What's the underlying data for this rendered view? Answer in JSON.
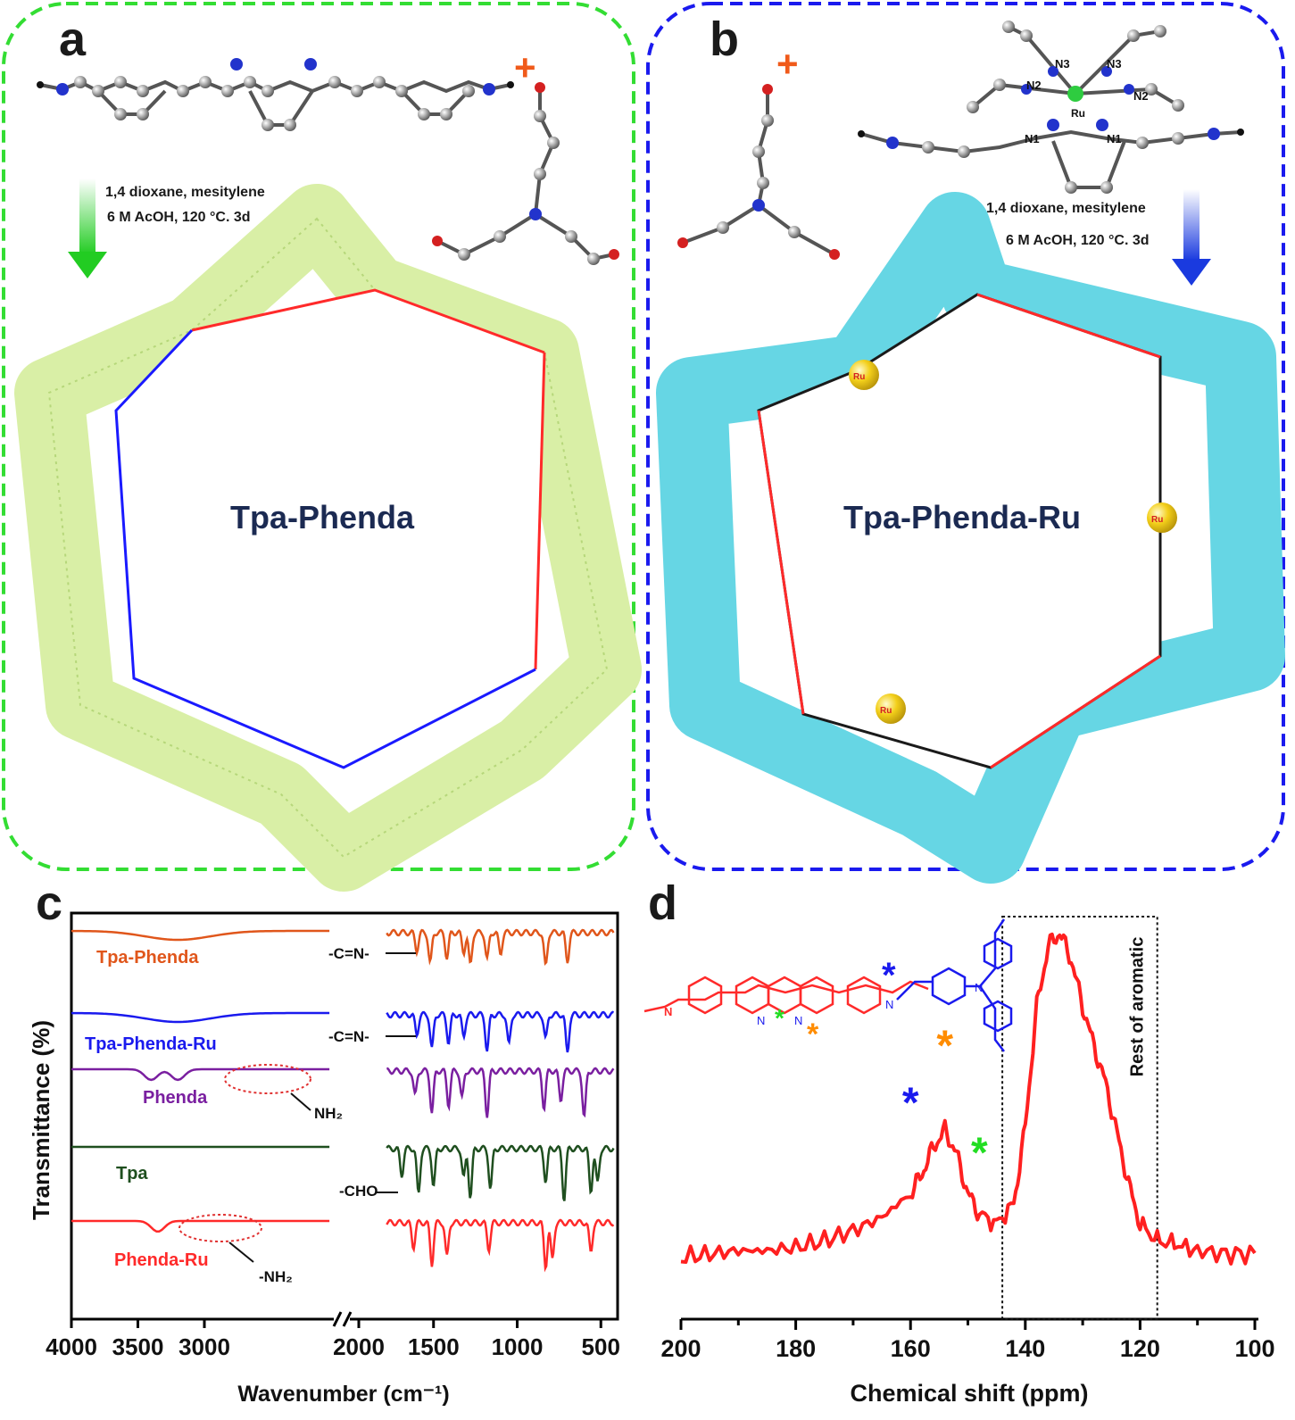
{
  "panel_a": {
    "label": "a",
    "plus": "+",
    "conditions_line1": "1,4 dioxane, mesitylene",
    "conditions_line2": "6 M AcOH, 120 °C. 3d",
    "product": "Tpa-Phenda",
    "frame_color": "#33dd33",
    "surface_color": "#d9efa6",
    "linker_color": "#ff2a2a",
    "node_color": "#1a1aff"
  },
  "panel_b": {
    "label": "b",
    "plus": "+",
    "conditions_line1": "1,4 dioxane, mesitylene",
    "conditions_line2": "6 M AcOH, 120 °C. 3d",
    "product": "Tpa-Phenda-Ru",
    "atom_labels": [
      "N3",
      "N3",
      "N2",
      "N2",
      "Ru",
      "N1",
      "N1"
    ],
    "metal_label": "Ru",
    "frame_color": "#1a1aee",
    "surface_color": "#66d6e4",
    "ru_color": "#f3cf1a"
  },
  "panel_c": {
    "label": "c",
    "chart_data": {
      "type": "line",
      "xlabel": "Wavenumber (cm⁻¹)",
      "ylabel": "Transmittance (%)",
      "x_axis_break": true,
      "xticks_left": [
        4000,
        3500,
        3000,
        2000
      ],
      "xticks_right": [
        2000,
        1500,
        1000,
        500
      ],
      "xlim_left": [
        4000,
        2000
      ],
      "xlim_right": [
        2000,
        400
      ],
      "series": [
        {
          "name": "Tpa-Phenda",
          "color": "#e0561b",
          "peaks_cm": [
            1600,
            1520,
            1420,
            1320,
            1280,
            1180,
            1100,
            830,
            700
          ]
        },
        {
          "name": "Tpa-Phenda-Ru",
          "color": "#1a1aee",
          "peaks_cm": [
            1600,
            1510,
            1410,
            1320,
            1180,
            1050,
            830,
            700
          ]
        },
        {
          "name": "Phenda",
          "color": "#7a1fa0",
          "peaks_cm": [
            3400,
            3200,
            1610,
            1510,
            1410,
            1330,
            1180,
            840,
            740,
            600
          ]
        },
        {
          "name": "Tpa",
          "color": "#1f4f1f",
          "peaks_cm": [
            1690,
            1590,
            1500,
            1320,
            1280,
            1160,
            830,
            720,
            560,
            520
          ]
        },
        {
          "name": "Phenda-Ru",
          "color": "#ff2a2a",
          "peaks_cm": [
            3350,
            1620,
            1510,
            1420,
            1170,
            830,
            790,
            560
          ]
        }
      ],
      "annotations": [
        "-C=N-",
        "-C=N-",
        "NH₂",
        "-CHO",
        "-NH₂"
      ]
    }
  },
  "panel_d": {
    "label": "d",
    "chart_data": {
      "type": "line",
      "xlabel": "Chemical shift (ppm)",
      "xlim": [
        200,
        100
      ],
      "xticks": [
        200,
        180,
        160,
        140,
        120,
        100
      ],
      "series": [
        {
          "color": "#ff2020",
          "x": [
            200,
            195,
            190,
            185,
            180,
            175,
            170,
            165,
            160,
            158,
            156,
            154,
            152,
            150,
            148,
            145,
            142,
            140,
            138,
            136,
            134,
            132,
            130,
            128,
            126,
            124,
            122,
            120,
            117,
            114,
            110,
            105,
            100
          ],
          "y": [
            0.03,
            0.04,
            0.05,
            0.05,
            0.06,
            0.08,
            0.11,
            0.15,
            0.22,
            0.28,
            0.36,
            0.41,
            0.34,
            0.22,
            0.16,
            0.13,
            0.19,
            0.42,
            0.78,
            0.96,
            1.0,
            0.92,
            0.78,
            0.66,
            0.55,
            0.4,
            0.25,
            0.13,
            0.08,
            0.07,
            0.05,
            0.04,
            0.04
          ]
        }
      ],
      "region_label": "Rest of aromatic",
      "region_ppm": [
        144,
        117
      ],
      "markers": [
        {
          "symbol": "*",
          "color": "#1a1aee",
          "ppm": 160
        },
        {
          "symbol": "*",
          "color": "#ff8c00",
          "ppm": 154
        },
        {
          "symbol": "*",
          "color": "#22dd22",
          "ppm": 148
        }
      ]
    },
    "structure_atom": "N"
  }
}
